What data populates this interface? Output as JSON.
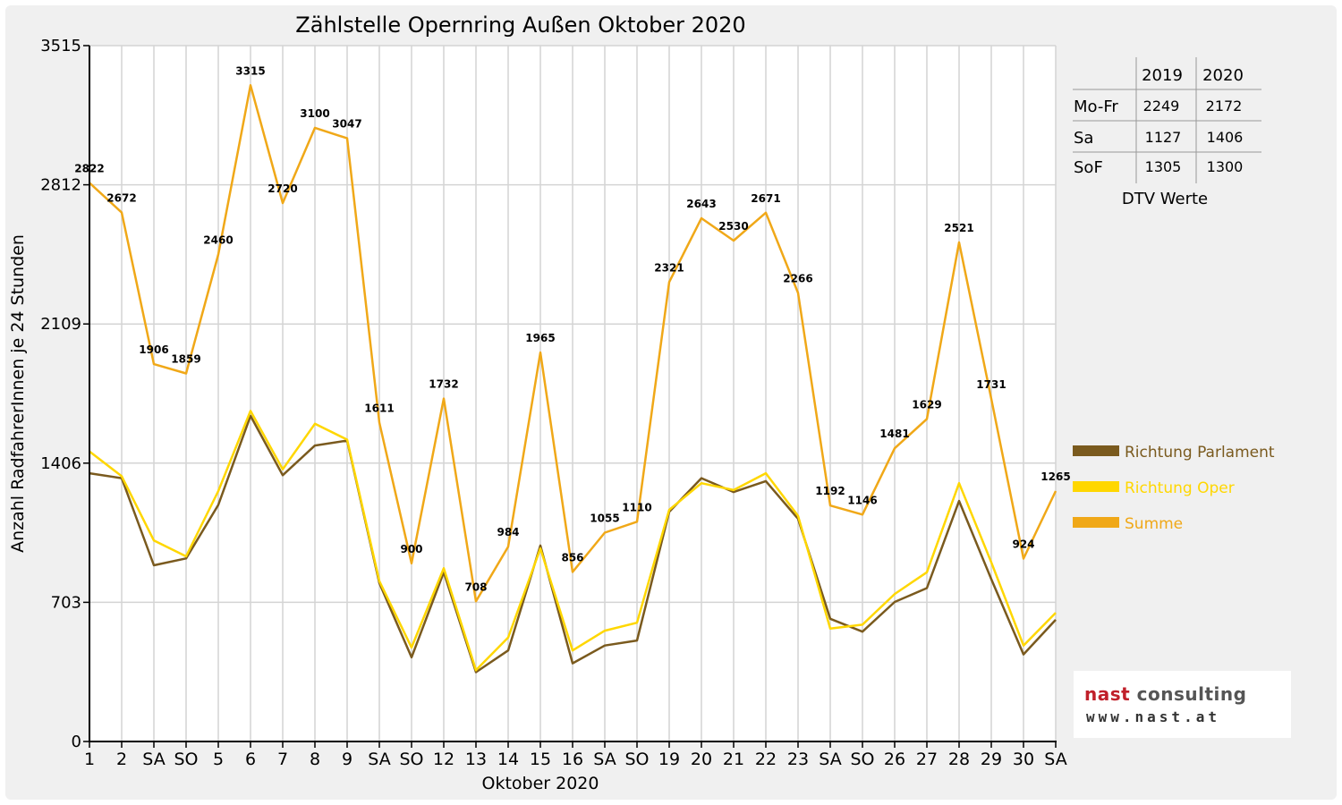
{
  "chart_data": {
    "type": "line",
    "title": "Zählstelle Opernring Außen Oktober 2020",
    "xlabel": "Oktober 2020",
    "ylabel": "Anzahl RadfahrerInnen je 24 Stunden",
    "ylim": [
      0,
      3515
    ],
    "yticks": [
      0,
      703,
      1406,
      2109,
      2812,
      3515
    ],
    "categories": [
      "1",
      "2",
      "SA",
      "SO",
      "5",
      "6",
      "7",
      "8",
      "9",
      "SA",
      "SO",
      "12",
      "13",
      "14",
      "15",
      "16",
      "SA",
      "SO",
      "19",
      "20",
      "21",
      "22",
      "23",
      "SA",
      "SO",
      "26",
      "27",
      "28",
      "29",
      "30",
      "SA"
    ],
    "red_categories": [
      3,
      10,
      17,
      24,
      25
    ],
    "grid": true,
    "legend_position": "right",
    "series": [
      {
        "name": "Richtung Parlament",
        "color": "#7a5a1e",
        "labeled": false,
        "values": [
          1355,
          1330,
          890,
          925,
          1195,
          1645,
          1345,
          1495,
          1520,
          800,
          425,
          855,
          350,
          460,
          990,
          395,
          485,
          510,
          1160,
          1330,
          1260,
          1315,
          1125,
          620,
          555,
          705,
          775,
          1215,
          820,
          440,
          615
        ]
      },
      {
        "name": "Richtung Oper",
        "color": "#ffd700",
        "labeled": false,
        "values": [
          1465,
          1340,
          1015,
          935,
          1265,
          1670,
          1375,
          1605,
          1525,
          810,
          475,
          875,
          360,
          525,
          975,
          460,
          560,
          600,
          1170,
          1305,
          1270,
          1355,
          1140,
          570,
          590,
          745,
          855,
          1305,
          905,
          485,
          650
        ]
      },
      {
        "name": "Summe",
        "color": "#f0a818",
        "labeled": true,
        "values": [
          2822,
          2672,
          1906,
          1859,
          2460,
          3315,
          2720,
          3100,
          3047,
          1611,
          900,
          1732,
          708,
          984,
          1965,
          856,
          1055,
          1110,
          2321,
          2643,
          2530,
          2671,
          2266,
          1192,
          1146,
          1481,
          1629,
          2521,
          1731,
          924,
          1265
        ]
      }
    ]
  },
  "dtv_table": {
    "headers": [
      "2019",
      "2020"
    ],
    "rows": [
      {
        "label": "Mo-Fr",
        "v2019": "2249",
        "v2020": "2172"
      },
      {
        "label": "Sa",
        "v2019": "1127",
        "v2020": "1406"
      },
      {
        "label": "SoF",
        "v2019": "1305",
        "v2020": "1300"
      }
    ],
    "caption": "DTV Werte"
  },
  "logo": {
    "brand_a": "nast",
    "brand_b": " consulting",
    "url": "www.nast.at",
    "color_a": "#c0202a",
    "color_b": "#555555"
  }
}
